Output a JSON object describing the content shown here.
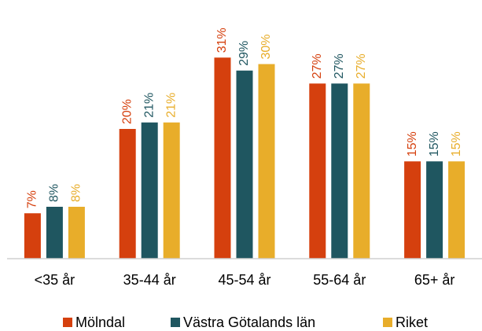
{
  "chart_data": {
    "type": "bar",
    "categories": [
      "<35 år",
      "35-44 år",
      "45-54 år",
      "55-64 år",
      "65+ år"
    ],
    "series": [
      {
        "name": "Mölndal",
        "color": "#d5400e",
        "values": [
          7,
          20,
          31,
          27,
          15
        ],
        "value_labels": [
          "7%",
          "20%",
          "31%",
          "27%",
          "15%"
        ]
      },
      {
        "name": "Västra Götalands län",
        "color": "#1f5660",
        "values": [
          8,
          21,
          29,
          27,
          15
        ],
        "value_labels": [
          "8%",
          "21%",
          "29%",
          "27%",
          "15%"
        ]
      },
      {
        "name": "Riket",
        "color": "#e8ad2a",
        "values": [
          8,
          21,
          30,
          27,
          15
        ],
        "value_labels": [
          "8%",
          "21%",
          "30%",
          "27%",
          "15%"
        ]
      }
    ]
  }
}
